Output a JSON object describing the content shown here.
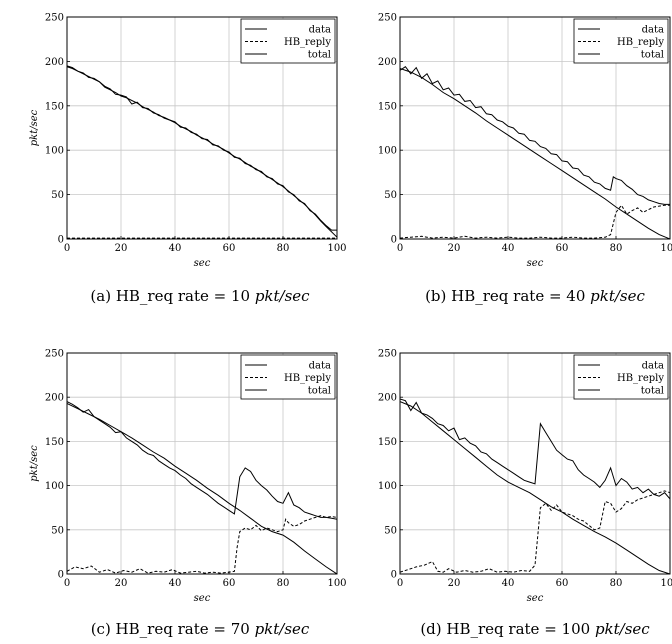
{
  "chart_data": [
    {
      "type": "line",
      "caption": {
        "prefix": "(a) HB_req rate = 10 ",
        "unit": "pkt/sec"
      },
      "xlabel": "sec",
      "ylabel": "pkt/sec",
      "xlim": [
        0,
        100
      ],
      "ylim": [
        0,
        250
      ],
      "xticks": [
        0,
        20,
        40,
        60,
        80,
        100
      ],
      "yticks": [
        0,
        50,
        100,
        150,
        200,
        250
      ],
      "grid": true,
      "legend": "top-right",
      "series": [
        {
          "name": "data",
          "dash": "solid",
          "x": [
            0,
            2,
            4,
            6,
            8,
            10,
            12,
            14,
            16,
            18,
            20,
            22,
            24,
            26,
            28,
            30,
            32,
            34,
            36,
            38,
            40,
            42,
            44,
            46,
            48,
            50,
            52,
            54,
            56,
            58,
            60,
            62,
            64,
            66,
            68,
            70,
            72,
            74,
            76,
            78,
            80,
            82,
            84,
            86,
            88,
            90,
            92,
            94,
            96,
            98,
            100
          ],
          "y": [
            194,
            192,
            189,
            186,
            183,
            180,
            177,
            171,
            168,
            165,
            161,
            159,
            156,
            153,
            149,
            146,
            143,
            139,
            137,
            134,
            131,
            127,
            124,
            121,
            117,
            114,
            111,
            107,
            104,
            101,
            97,
            93,
            90,
            86,
            82,
            79,
            75,
            71,
            67,
            63,
            59,
            54,
            49,
            44,
            39,
            33,
            27,
            20,
            14,
            8,
            2
          ]
        },
        {
          "name": "HB_reply",
          "dash": "dashed",
          "x": [
            0,
            10,
            20,
            30,
            40,
            50,
            60,
            70,
            80,
            90,
            100
          ],
          "y": [
            1,
            1,
            1,
            1,
            1,
            1,
            1,
            1,
            1,
            1,
            1
          ]
        },
        {
          "name": "total",
          "dash": "solid",
          "x": [
            0,
            2,
            4,
            6,
            8,
            10,
            12,
            14,
            16,
            18,
            20,
            22,
            24,
            26,
            28,
            30,
            32,
            34,
            36,
            38,
            40,
            42,
            44,
            46,
            48,
            50,
            52,
            54,
            56,
            58,
            60,
            62,
            64,
            66,
            68,
            70,
            72,
            74,
            76,
            78,
            80,
            82,
            84,
            86,
            88,
            90,
            92,
            94,
            96,
            98,
            100
          ],
          "y": [
            195,
            193,
            189,
            187,
            182,
            181,
            177,
            172,
            169,
            163,
            162,
            160,
            152,
            154,
            148,
            147,
            142,
            140,
            136,
            134,
            132,
            126,
            125,
            120,
            118,
            113,
            112,
            106,
            105,
            100,
            98,
            92,
            91,
            85,
            83,
            78,
            76,
            70,
            68,
            62,
            60,
            53,
            50,
            43,
            40,
            32,
            28,
            21,
            15,
            10,
            10
          ]
        }
      ]
    },
    {
      "type": "line",
      "caption": {
        "prefix": "(b) HB_req rate = 40 ",
        "unit": "pkt/sec"
      },
      "xlabel": "sec",
      "ylabel": "",
      "xlim": [
        0,
        100
      ],
      "ylim": [
        0,
        250
      ],
      "xticks": [
        0,
        20,
        40,
        60,
        80,
        100
      ],
      "yticks": [
        0,
        50,
        100,
        150,
        200,
        250
      ],
      "grid": true,
      "legend": "top-right",
      "series": [
        {
          "name": "data",
          "dash": "solid",
          "x": [
            0,
            4,
            8,
            12,
            16,
            20,
            24,
            28,
            32,
            36,
            40,
            44,
            48,
            52,
            56,
            60,
            64,
            68,
            72,
            76,
            80,
            84,
            88,
            92,
            96,
            100
          ],
          "y": [
            192,
            188,
            182,
            174,
            165,
            158,
            150,
            142,
            133,
            125,
            117,
            109,
            101,
            93,
            85,
            77,
            69,
            61,
            53,
            45,
            36,
            28,
            20,
            12,
            5,
            0
          ]
        },
        {
          "name": "HB_reply",
          "dash": "dashed",
          "x": [
            0,
            4,
            8,
            12,
            16,
            20,
            24,
            28,
            32,
            36,
            40,
            44,
            48,
            52,
            56,
            60,
            64,
            68,
            72,
            76,
            78,
            80,
            82,
            84,
            86,
            88,
            90,
            92,
            94,
            96,
            98,
            100
          ],
          "y": [
            1,
            2,
            3,
            1,
            2,
            1,
            3,
            1,
            2,
            1,
            2,
            1,
            1,
            2,
            1,
            1,
            2,
            1,
            1,
            2,
            5,
            30,
            38,
            28,
            32,
            35,
            30,
            33,
            36,
            37,
            38,
            38
          ]
        },
        {
          "name": "total",
          "dash": "solid",
          "x": [
            0,
            2,
            4,
            6,
            8,
            10,
            12,
            14,
            16,
            18,
            20,
            22,
            24,
            26,
            28,
            30,
            32,
            34,
            36,
            38,
            40,
            42,
            44,
            46,
            48,
            50,
            52,
            54,
            56,
            58,
            60,
            62,
            64,
            66,
            68,
            70,
            72,
            74,
            76,
            78,
            79,
            80,
            82,
            84,
            86,
            88,
            90,
            92,
            94,
            96,
            98,
            100
          ],
          "y": [
            190,
            194,
            186,
            193,
            181,
            186,
            175,
            178,
            168,
            170,
            162,
            163,
            155,
            156,
            148,
            149,
            141,
            140,
            134,
            132,
            127,
            125,
            119,
            118,
            111,
            110,
            104,
            102,
            96,
            95,
            88,
            87,
            80,
            79,
            72,
            70,
            64,
            62,
            57,
            55,
            70,
            68,
            66,
            60,
            56,
            50,
            48,
            44,
            42,
            40,
            39,
            39
          ]
        }
      ]
    },
    {
      "type": "line",
      "caption": {
        "prefix": "(c) HB_req rate = 70 ",
        "unit": "pkt/sec"
      },
      "xlabel": "sec",
      "ylabel": "pkt/sec",
      "xlim": [
        0,
        100
      ],
      "ylim": [
        0,
        250
      ],
      "xticks": [
        0,
        20,
        40,
        60,
        80,
        100
      ],
      "yticks": [
        0,
        50,
        100,
        150,
        200,
        250
      ],
      "grid": true,
      "legend": "top-right",
      "series": [
        {
          "name": "data",
          "dash": "solid",
          "x": [
            0,
            4,
            8,
            12,
            16,
            20,
            24,
            28,
            32,
            36,
            40,
            44,
            48,
            52,
            56,
            60,
            64,
            68,
            72,
            76,
            80,
            84,
            88,
            92,
            96,
            100
          ],
          "y": [
            193,
            187,
            181,
            175,
            168,
            161,
            154,
            146,
            138,
            131,
            122,
            114,
            106,
            97,
            89,
            80,
            72,
            63,
            54,
            48,
            44,
            36,
            26,
            17,
            8,
            0
          ]
        },
        {
          "name": "HB_reply",
          "dash": "dashed",
          "x": [
            0,
            3,
            6,
            9,
            12,
            15,
            18,
            21,
            24,
            27,
            30,
            33,
            36,
            39,
            42,
            45,
            48,
            51,
            54,
            57,
            60,
            62,
            63,
            64,
            66,
            68,
            70,
            72,
            74,
            76,
            78,
            80,
            81,
            82,
            84,
            86,
            88,
            90,
            92,
            94,
            96,
            98,
            100
          ],
          "y": [
            3,
            8,
            6,
            9,
            2,
            5,
            1,
            4,
            2,
            6,
            1,
            3,
            2,
            5,
            1,
            2,
            3,
            1,
            2,
            1,
            2,
            3,
            30,
            48,
            52,
            50,
            55,
            49,
            52,
            50,
            48,
            50,
            62,
            58,
            54,
            56,
            60,
            62,
            64,
            66,
            64,
            65,
            64
          ]
        },
        {
          "name": "total",
          "dash": "solid",
          "x": [
            0,
            2,
            4,
            6,
            8,
            10,
            12,
            14,
            16,
            18,
            20,
            22,
            24,
            26,
            28,
            30,
            32,
            34,
            36,
            38,
            40,
            42,
            44,
            46,
            48,
            50,
            52,
            54,
            56,
            58,
            60,
            62,
            64,
            66,
            68,
            70,
            72,
            74,
            76,
            78,
            80,
            82,
            84,
            86,
            88,
            90,
            92,
            94,
            96,
            98,
            100
          ],
          "y": [
            195,
            192,
            188,
            183,
            186,
            178,
            174,
            170,
            166,
            160,
            161,
            154,
            150,
            146,
            140,
            136,
            134,
            128,
            124,
            120,
            117,
            112,
            108,
            102,
            98,
            94,
            90,
            85,
            80,
            76,
            72,
            68,
            110,
            120,
            116,
            106,
            100,
            95,
            88,
            82,
            80,
            92,
            78,
            75,
            70,
            68,
            66,
            64,
            64,
            63,
            62
          ]
        }
      ]
    },
    {
      "type": "line",
      "caption": {
        "prefix": "(d) HB_req rate = 100 ",
        "unit": "pkt/sec"
      },
      "xlabel": "sec",
      "ylabel": "",
      "xlim": [
        0,
        100
      ],
      "ylim": [
        0,
        250
      ],
      "xticks": [
        0,
        20,
        40,
        60,
        80,
        100
      ],
      "yticks": [
        0,
        50,
        100,
        150,
        200,
        250
      ],
      "grid": true,
      "legend": "top-right",
      "series": [
        {
          "name": "data",
          "dash": "solid",
          "x": [
            0,
            4,
            8,
            12,
            16,
            20,
            24,
            28,
            32,
            36,
            40,
            44,
            48,
            52,
            56,
            60,
            64,
            68,
            72,
            76,
            80,
            84,
            88,
            92,
            96,
            100
          ],
          "y": [
            195,
            190,
            182,
            172,
            162,
            152,
            142,
            132,
            122,
            112,
            104,
            98,
            92,
            84,
            76,
            70,
            62,
            55,
            48,
            42,
            35,
            27,
            19,
            11,
            4,
            0
          ]
        },
        {
          "name": "HB_reply",
          "dash": "dashed",
          "x": [
            0,
            3,
            6,
            9,
            12,
            14,
            16,
            18,
            21,
            24,
            27,
            30,
            33,
            36,
            39,
            42,
            45,
            48,
            50,
            52,
            54,
            56,
            58,
            60,
            62,
            64,
            66,
            68,
            70,
            72,
            74,
            76,
            78,
            80,
            82,
            84,
            86,
            88,
            90,
            92,
            94,
            96,
            98,
            100
          ],
          "y": [
            2,
            5,
            8,
            10,
            14,
            3,
            2,
            6,
            2,
            4,
            2,
            3,
            6,
            2,
            3,
            2,
            4,
            3,
            10,
            75,
            80,
            72,
            78,
            70,
            68,
            66,
            62,
            60,
            55,
            50,
            52,
            82,
            80,
            70,
            74,
            82,
            80,
            84,
            86,
            88,
            90,
            92,
            94,
            92
          ]
        },
        {
          "name": "total",
          "dash": "solid",
          "x": [
            0,
            2,
            4,
            6,
            8,
            10,
            12,
            14,
            16,
            18,
            20,
            22,
            24,
            26,
            28,
            30,
            32,
            34,
            36,
            38,
            40,
            42,
            44,
            46,
            48,
            50,
            52,
            54,
            56,
            58,
            60,
            62,
            64,
            66,
            68,
            70,
            72,
            74,
            76,
            78,
            80,
            82,
            84,
            86,
            88,
            90,
            92,
            94,
            96,
            98,
            100
          ],
          "y": [
            198,
            196,
            185,
            194,
            182,
            180,
            176,
            170,
            168,
            162,
            165,
            152,
            154,
            148,
            145,
            138,
            136,
            130,
            126,
            122,
            118,
            114,
            110,
            106,
            104,
            102,
            170,
            160,
            150,
            140,
            135,
            130,
            128,
            118,
            112,
            108,
            104,
            98,
            106,
            120,
            100,
            108,
            104,
            96,
            98,
            92,
            96,
            90,
            88,
            92,
            85
          ]
        }
      ]
    }
  ]
}
